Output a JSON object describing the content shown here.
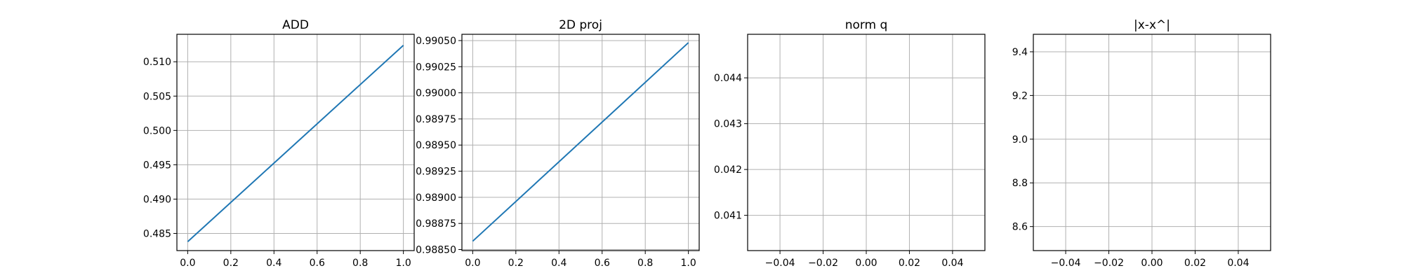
{
  "chart_data": [
    {
      "type": "line",
      "title": "ADD",
      "xlabel": "",
      "ylabel": "",
      "grid": true,
      "xlim": [
        -0.05,
        1.05
      ],
      "ylim": [
        0.4825,
        0.514
      ],
      "xticks": [
        0.0,
        0.2,
        0.4,
        0.6,
        0.8,
        1.0
      ],
      "xtick_labels": [
        "0.0",
        "0.2",
        "0.4",
        "0.6",
        "0.8",
        "1.0"
      ],
      "yticks": [
        0.485,
        0.49,
        0.495,
        0.5,
        0.505,
        0.51
      ],
      "ytick_labels": [
        "0.485",
        "0.490",
        "0.495",
        "0.500",
        "0.505",
        "0.510"
      ],
      "series": [
        {
          "x": [
            0.0,
            1.0
          ],
          "y": [
            0.4838,
            0.5124
          ],
          "color": "#1f77b4"
        }
      ]
    },
    {
      "type": "line",
      "title": "2D proj",
      "xlabel": "",
      "ylabel": "",
      "grid": true,
      "xlim": [
        -0.05,
        1.05
      ],
      "ylim": [
        0.98849,
        0.99056
      ],
      "xticks": [
        0.0,
        0.2,
        0.4,
        0.6,
        0.8,
        1.0
      ],
      "xtick_labels": [
        "0.0",
        "0.2",
        "0.4",
        "0.6",
        "0.8",
        "1.0"
      ],
      "yticks": [
        0.9885,
        0.98875,
        0.989,
        0.98925,
        0.9895,
        0.98975,
        0.99,
        0.99025,
        0.9905
      ],
      "ytick_labels": [
        "0.98850",
        "0.98875",
        "0.98900",
        "0.98925",
        "0.98950",
        "0.98975",
        "0.99000",
        "0.99025",
        "0.99050"
      ],
      "series": [
        {
          "x": [
            0.0,
            1.0
          ],
          "y": [
            0.98858,
            0.99048
          ],
          "color": "#1f77b4"
        }
      ]
    },
    {
      "type": "line",
      "title": "norm q",
      "xlabel": "",
      "ylabel": "",
      "grid": true,
      "xlim": [
        -0.055,
        0.055
      ],
      "ylim": [
        0.04023,
        0.04495
      ],
      "xticks": [
        -0.04,
        -0.02,
        0.0,
        0.02,
        0.04
      ],
      "xtick_labels": [
        "−0.04",
        "−0.02",
        "0.00",
        "0.02",
        "0.04"
      ],
      "yticks": [
        0.041,
        0.042,
        0.043,
        0.044
      ],
      "ytick_labels": [
        "0.041",
        "0.042",
        "0.043",
        "0.044"
      ],
      "series": []
    },
    {
      "type": "line",
      "title": "|x-x^|",
      "xlabel": "",
      "ylabel": "",
      "grid": true,
      "xlim": [
        -0.055,
        0.055
      ],
      "ylim": [
        8.49,
        9.48
      ],
      "xticks": [
        -0.04,
        -0.02,
        0.0,
        0.02,
        0.04
      ],
      "xtick_labels": [
        "−0.04",
        "−0.02",
        "0.00",
        "0.02",
        "0.04"
      ],
      "yticks": [
        8.6,
        8.8,
        9.0,
        9.2,
        9.4
      ],
      "ytick_labels": [
        "8.6",
        "8.8",
        "9.0",
        "9.2",
        "9.4"
      ],
      "series": []
    }
  ]
}
